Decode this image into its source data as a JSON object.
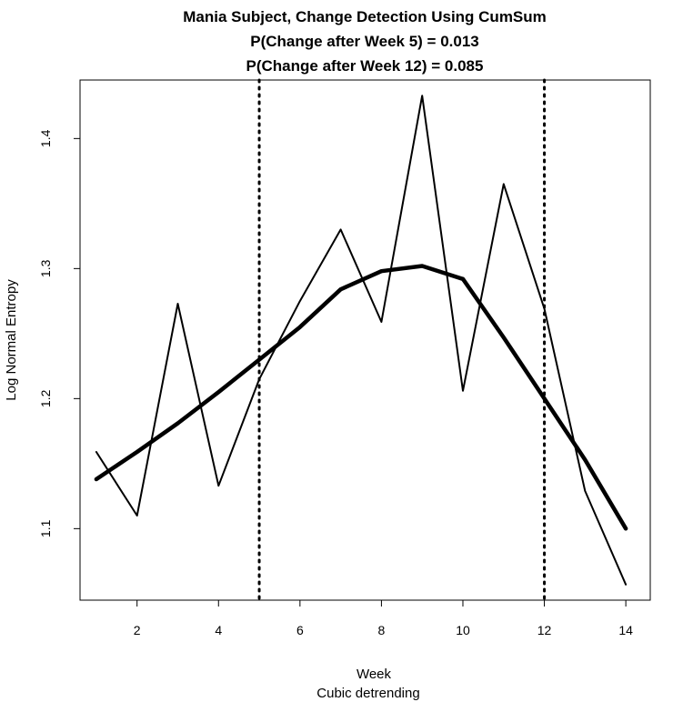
{
  "chart_data": {
    "type": "line",
    "title": "Mania Subject, Change Detection Using CumSum",
    "subtitles": [
      "P(Change after Week 5) = 0.013",
      "P(Change after Week 12) = 0.085"
    ],
    "xlabel": "Week",
    "xsublabel": "Cubic detrending",
    "ylabel": "Log Normal Entropy",
    "xlim": [
      0.6,
      14.6
    ],
    "ylim": [
      1.045,
      1.445
    ],
    "xticks": [
      2,
      4,
      6,
      8,
      10,
      12,
      14
    ],
    "yticks": [
      1.1,
      1.2,
      1.3,
      1.4
    ],
    "x": [
      1,
      2,
      3,
      4,
      5,
      6,
      7,
      8,
      9,
      10,
      11,
      12,
      13,
      14
    ],
    "series": [
      {
        "values": [
          1.159,
          1.11,
          1.273,
          1.133,
          1.215,
          1.275,
          1.33,
          1.259,
          1.433,
          1.206,
          1.365,
          1.269,
          1.129,
          1.057
        ],
        "style": "thin"
      },
      {
        "values": [
          1.138,
          1.159,
          1.181,
          1.205,
          1.23,
          1.255,
          1.284,
          1.298,
          1.302,
          1.292,
          1.247,
          1.2,
          1.153,
          1.1
        ],
        "style": "thick"
      }
    ],
    "vlines": [
      5,
      12
    ],
    "grid": false,
    "colors": {
      "line": "#000000",
      "background": "#ffffff"
    }
  }
}
